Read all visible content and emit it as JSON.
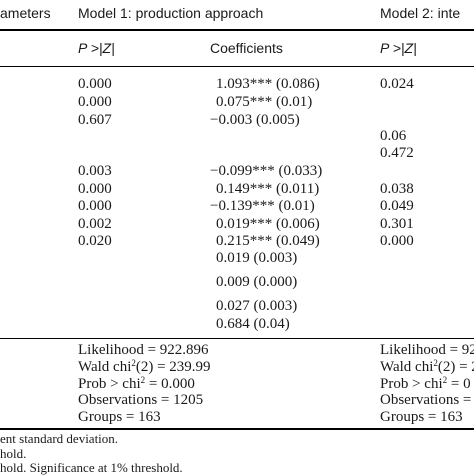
{
  "header": {
    "params_label": "ameters",
    "model1_title": "Model 1: production approach",
    "model2_title": "Model 2: inte"
  },
  "subheader": {
    "pz_label": "P >|Z|",
    "coeff_label": "Coefficients",
    "pz_label_2": "P >|Z|"
  },
  "rows": [
    {
      "pz1": "0.000",
      "coef": "1.093*** (0.086)",
      "pz2": "0.024"
    },
    {
      "pz1": "0.000",
      "coef": "0.075*** (0.01)",
      "pz2": ""
    },
    {
      "pz1": "0.607",
      "coef": "−0.003 (0.005)",
      "pz2": ""
    },
    {
      "pz1": "",
      "coef": "",
      "pz2": "0.06"
    },
    {
      "pz1": "",
      "coef": "",
      "pz2": "0.472"
    },
    {
      "pz1": "0.003",
      "coef": "−0.099*** (0.033)",
      "pz2": ""
    },
    {
      "pz1": "0.000",
      "coef": "0.149*** (0.011)",
      "pz2": "0.038"
    },
    {
      "pz1": "0.000",
      "coef": "−0.139*** (0.01)",
      "pz2": "0.049"
    },
    {
      "pz1": "0.002",
      "coef": "0.019*** (0.006)",
      "pz2": "0.301"
    },
    {
      "pz1": "0.020",
      "coef": "0.215*** (0.049)",
      "pz2": "0.000"
    },
    {
      "pz1": "",
      "coef": "0.019 (0.003)",
      "pz2": ""
    },
    {
      "pz1": "",
      "coef": "0.009 (0.000)",
      "pz2": ""
    },
    {
      "pz1": "",
      "coef": "0.027 (0.003)",
      "pz2": ""
    },
    {
      "pz1": "",
      "coef": "0.684 (0.04)",
      "pz2": ""
    }
  ],
  "stats_model1": {
    "likelihood": "Likelihood = 922.896",
    "wald_prefix": "Wald chi",
    "wald_sup": "2",
    "wald_suffix": "(2) = 239.99",
    "prob_prefix": "Prob > chi",
    "prob_sup": "2",
    "prob_suffix": " = 0.000",
    "observations": "Observations = 1205",
    "groups": "Groups = 163"
  },
  "stats_model2": {
    "likelihood": "Likelihood = 92",
    "wald_prefix": "Wald chi",
    "wald_sup": "2",
    "wald_suffix": "(2) = 2",
    "prob_prefix": "Prob > chi",
    "prob_sup": "2",
    "prob_suffix": " = 0",
    "observations": "Observations = 1",
    "groups": "Groups = 163"
  },
  "footnotes": [
    "ent standard deviation.",
    "hold.",
    "hold. Significance at 1% threshold."
  ]
}
